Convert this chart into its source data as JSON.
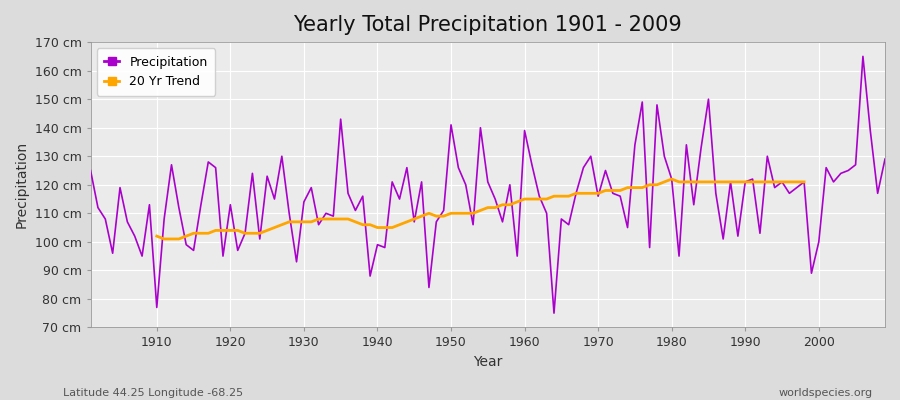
{
  "title": "Yearly Total Precipitation 1901 - 2009",
  "xlabel": "Year",
  "ylabel": "Precipitation",
  "subtitle_left": "Latitude 44.25 Longitude -68.25",
  "subtitle_right": "worldspecies.org",
  "years": [
    1901,
    1902,
    1903,
    1904,
    1905,
    1906,
    1907,
    1908,
    1909,
    1910,
    1911,
    1912,
    1913,
    1914,
    1915,
    1916,
    1917,
    1918,
    1919,
    1920,
    1921,
    1922,
    1923,
    1924,
    1925,
    1926,
    1927,
    1928,
    1929,
    1930,
    1931,
    1932,
    1933,
    1934,
    1935,
    1936,
    1937,
    1938,
    1939,
    1940,
    1941,
    1942,
    1943,
    1944,
    1945,
    1946,
    1947,
    1948,
    1949,
    1950,
    1951,
    1952,
    1953,
    1954,
    1955,
    1956,
    1957,
    1958,
    1959,
    1960,
    1961,
    1962,
    1963,
    1964,
    1965,
    1966,
    1967,
    1968,
    1969,
    1970,
    1971,
    1972,
    1973,
    1974,
    1975,
    1976,
    1977,
    1978,
    1979,
    1980,
    1981,
    1982,
    1983,
    1984,
    1985,
    1986,
    1987,
    1988,
    1989,
    1990,
    1991,
    1992,
    1993,
    1994,
    1995,
    1996,
    1997,
    1998,
    1999,
    2000,
    2001,
    2002,
    2003,
    2004,
    2005,
    2006,
    2007,
    2008,
    2009
  ],
  "precipitation": [
    125,
    112,
    108,
    96,
    119,
    107,
    102,
    95,
    113,
    77,
    108,
    127,
    112,
    99,
    97,
    113,
    128,
    126,
    95,
    113,
    97,
    103,
    124,
    101,
    123,
    115,
    130,
    110,
    93,
    114,
    119,
    106,
    110,
    109,
    143,
    117,
    111,
    116,
    88,
    99,
    98,
    121,
    115,
    126,
    107,
    121,
    84,
    107,
    111,
    141,
    126,
    120,
    106,
    140,
    121,
    115,
    107,
    120,
    95,
    139,
    127,
    116,
    110,
    75,
    108,
    106,
    117,
    126,
    130,
    116,
    125,
    117,
    116,
    105,
    134,
    149,
    98,
    148,
    130,
    122,
    95,
    134,
    113,
    133,
    150,
    117,
    101,
    121,
    102,
    121,
    122,
    103,
    130,
    119,
    121,
    117,
    119,
    121,
    89,
    100,
    126,
    121,
    124,
    125,
    127,
    165,
    139,
    117,
    129
  ],
  "trend": [
    null,
    null,
    null,
    null,
    null,
    null,
    null,
    null,
    null,
    102,
    101,
    101,
    101,
    102,
    103,
    103,
    103,
    104,
    104,
    104,
    104,
    103,
    103,
    103,
    104,
    105,
    106,
    107,
    107,
    107,
    107,
    108,
    108,
    108,
    108,
    108,
    107,
    106,
    106,
    105,
    105,
    105,
    106,
    107,
    108,
    109,
    110,
    109,
    109,
    110,
    110,
    110,
    110,
    111,
    112,
    112,
    113,
    113,
    114,
    115,
    115,
    115,
    115,
    116,
    116,
    116,
    117,
    117,
    117,
    117,
    118,
    118,
    118,
    119,
    119,
    119,
    120,
    120,
    121,
    122,
    121,
    121,
    121,
    121,
    121,
    121,
    121,
    121,
    121,
    121,
    121,
    121,
    121,
    121,
    121,
    121,
    121,
    121,
    null,
    null,
    null,
    null,
    null,
    null,
    null,
    null,
    null,
    null,
    null
  ],
  "precip_color": "#AA00CC",
  "trend_color": "#FFA500",
  "bg_color": "#DCDCDC",
  "plot_bg_color": "#EBEBEB",
  "grid_color": "#FFFFFF",
  "ylim": [
    70,
    170
  ],
  "yticks": [
    70,
    80,
    90,
    100,
    110,
    120,
    130,
    140,
    150,
    160,
    170
  ],
  "ytick_labels": [
    "70 cm",
    "80 cm",
    "90 cm",
    "100 cm",
    "110 cm",
    "120 cm",
    "130 cm",
    "140 cm",
    "150 cm",
    "160 cm",
    "170 cm"
  ],
  "xlim": [
    1901,
    2009
  ],
  "xticks": [
    1910,
    1920,
    1930,
    1940,
    1950,
    1960,
    1970,
    1980,
    1990,
    2000
  ],
  "title_fontsize": 15,
  "label_fontsize": 10,
  "tick_fontsize": 9
}
